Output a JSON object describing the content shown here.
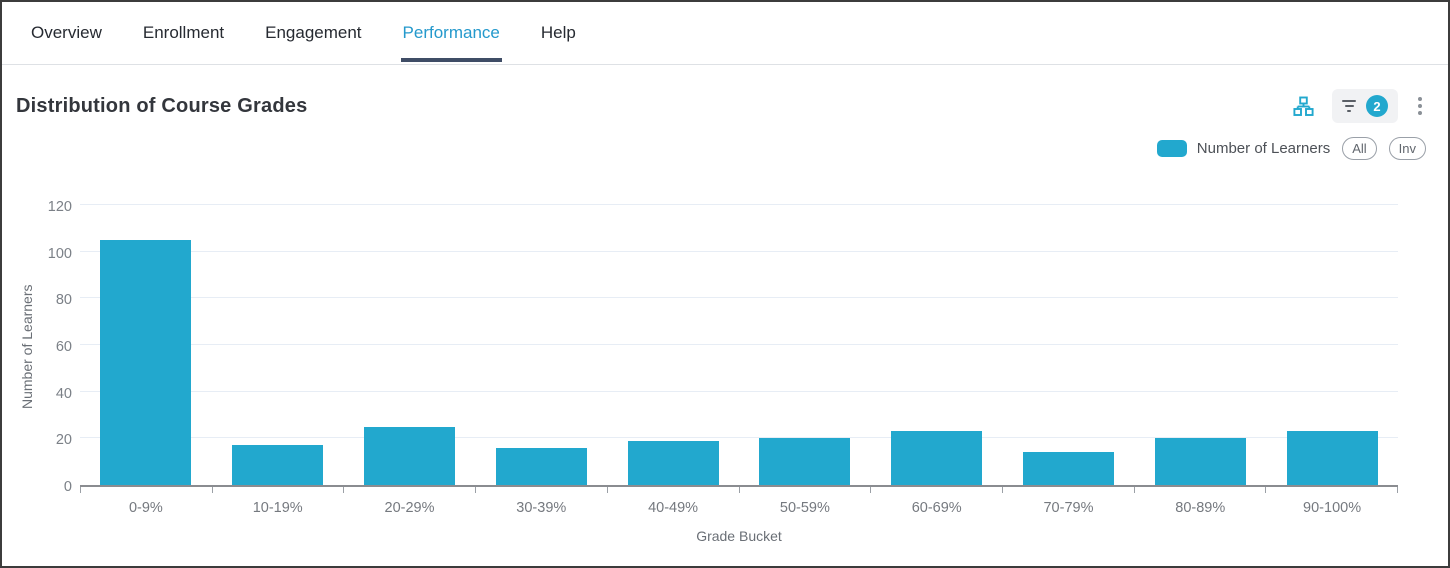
{
  "tabs": [
    {
      "label": "Overview",
      "active": false
    },
    {
      "label": "Enrollment",
      "active": false
    },
    {
      "label": "Engagement",
      "active": false
    },
    {
      "label": "Performance",
      "active": true
    },
    {
      "label": "Help",
      "active": false
    }
  ],
  "panel": {
    "title": "Distribution of Course Grades",
    "toolbar": {
      "filter_badge_count": "2",
      "icons": [
        "hierarchy-icon",
        "filter-icon",
        "kebab-menu-icon"
      ]
    },
    "legend": {
      "series_label": "Number of Learners",
      "all_button": "All",
      "inv_button": "Inv"
    }
  },
  "colors": {
    "bar": "#22A8CE",
    "active_tab": "#2499CC",
    "active_tab_underline": "#3F4D66",
    "badge": "#22A8CE"
  },
  "chart_data": {
    "type": "bar",
    "title": "Distribution of Course Grades",
    "categories": [
      "0-9%",
      "10-19%",
      "20-29%",
      "30-39%",
      "40-49%",
      "50-59%",
      "60-69%",
      "70-79%",
      "80-89%",
      "90-100%"
    ],
    "values": [
      105,
      17,
      25,
      16,
      19,
      20,
      23,
      14,
      20,
      23
    ],
    "series": [
      {
        "name": "Number of Learners",
        "values": [
          105,
          17,
          25,
          16,
          19,
          20,
          23,
          14,
          20,
          23
        ]
      }
    ],
    "xlabel": "Grade Bucket",
    "ylabel": "Number of Learners",
    "ylim": [
      0,
      120
    ],
    "yticks": [
      0,
      20,
      40,
      60,
      80,
      100,
      120
    ],
    "legend_entries": [
      "Number of Learners"
    ],
    "legend_position": "top-right",
    "grid": true,
    "bar_color": "#22A8CE"
  }
}
